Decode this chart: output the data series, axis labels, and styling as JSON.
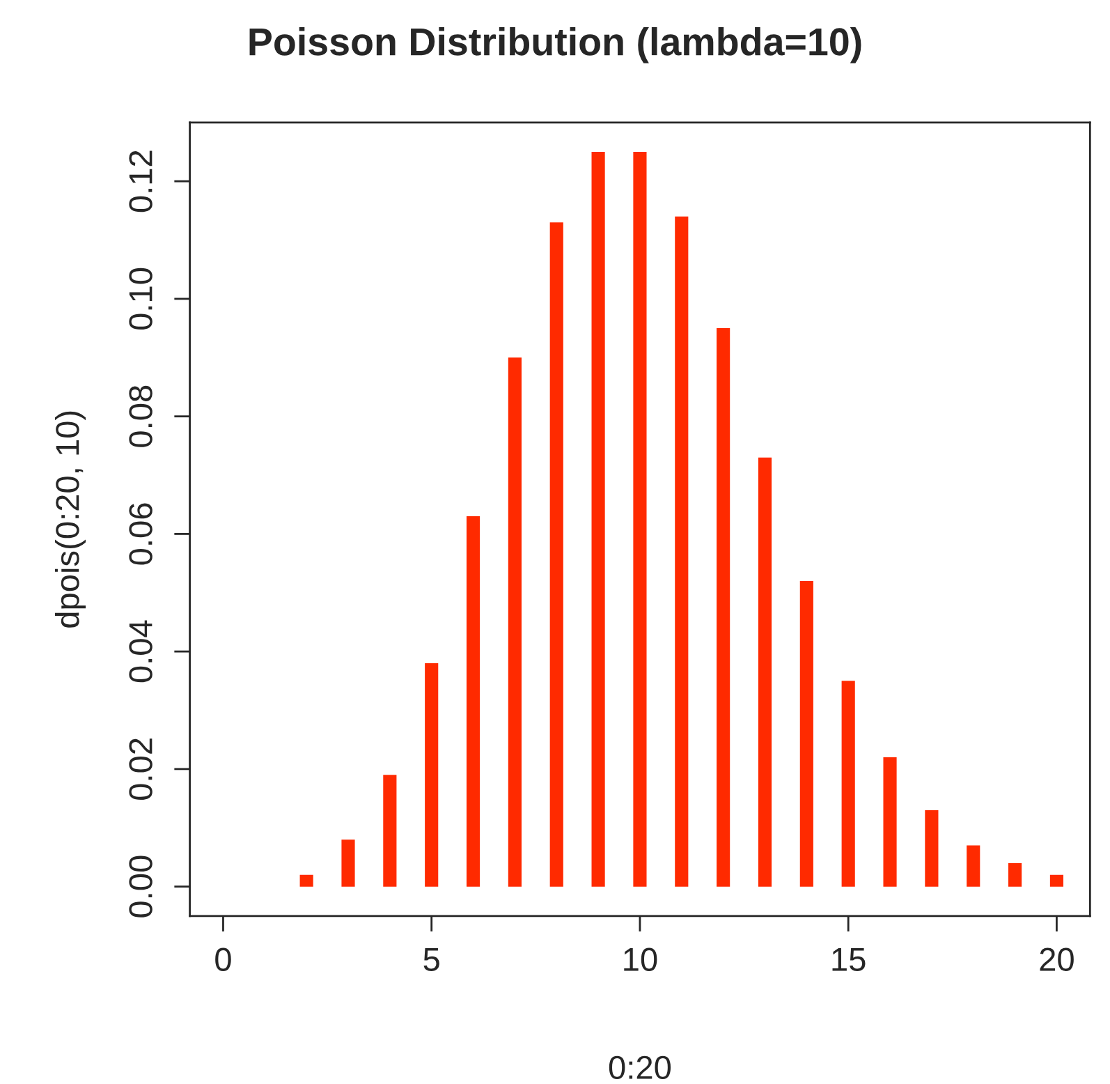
{
  "chart_data": {
    "type": "bar",
    "title": "Poisson Distribution (lambda=10)",
    "xlabel": "0:20",
    "ylabel": "dpois(0:20, 10)",
    "x": [
      0,
      1,
      2,
      3,
      4,
      5,
      6,
      7,
      8,
      9,
      10,
      11,
      12,
      13,
      14,
      15,
      16,
      17,
      18,
      19,
      20
    ],
    "series": [
      {
        "color": "#ff2a00",
        "values": [
          0.0,
          0.0,
          0.002,
          0.008,
          0.019,
          0.038,
          0.063,
          0.09,
          0.113,
          0.125,
          0.125,
          0.114,
          0.095,
          0.073,
          0.052,
          0.035,
          0.022,
          0.013,
          0.007,
          0.004,
          0.002
        ]
      }
    ],
    "xlim": [
      -0.8,
      20.8
    ],
    "xticks": [
      0,
      5,
      10,
      15,
      20
    ],
    "ylim": [
      -0.005,
      0.13
    ],
    "yticks": [
      {
        "value": 0,
        "label": "0.00"
      },
      {
        "value": 0.02,
        "label": "0.02"
      },
      {
        "value": 0.04,
        "label": "0.04"
      },
      {
        "value": 0.06,
        "label": "0.06"
      },
      {
        "value": 0.08,
        "label": "0.08"
      },
      {
        "value": 0.1,
        "label": "0.10"
      },
      {
        "value": 0.12,
        "label": "0.12"
      }
    ],
    "grid": false,
    "legend": false
  }
}
